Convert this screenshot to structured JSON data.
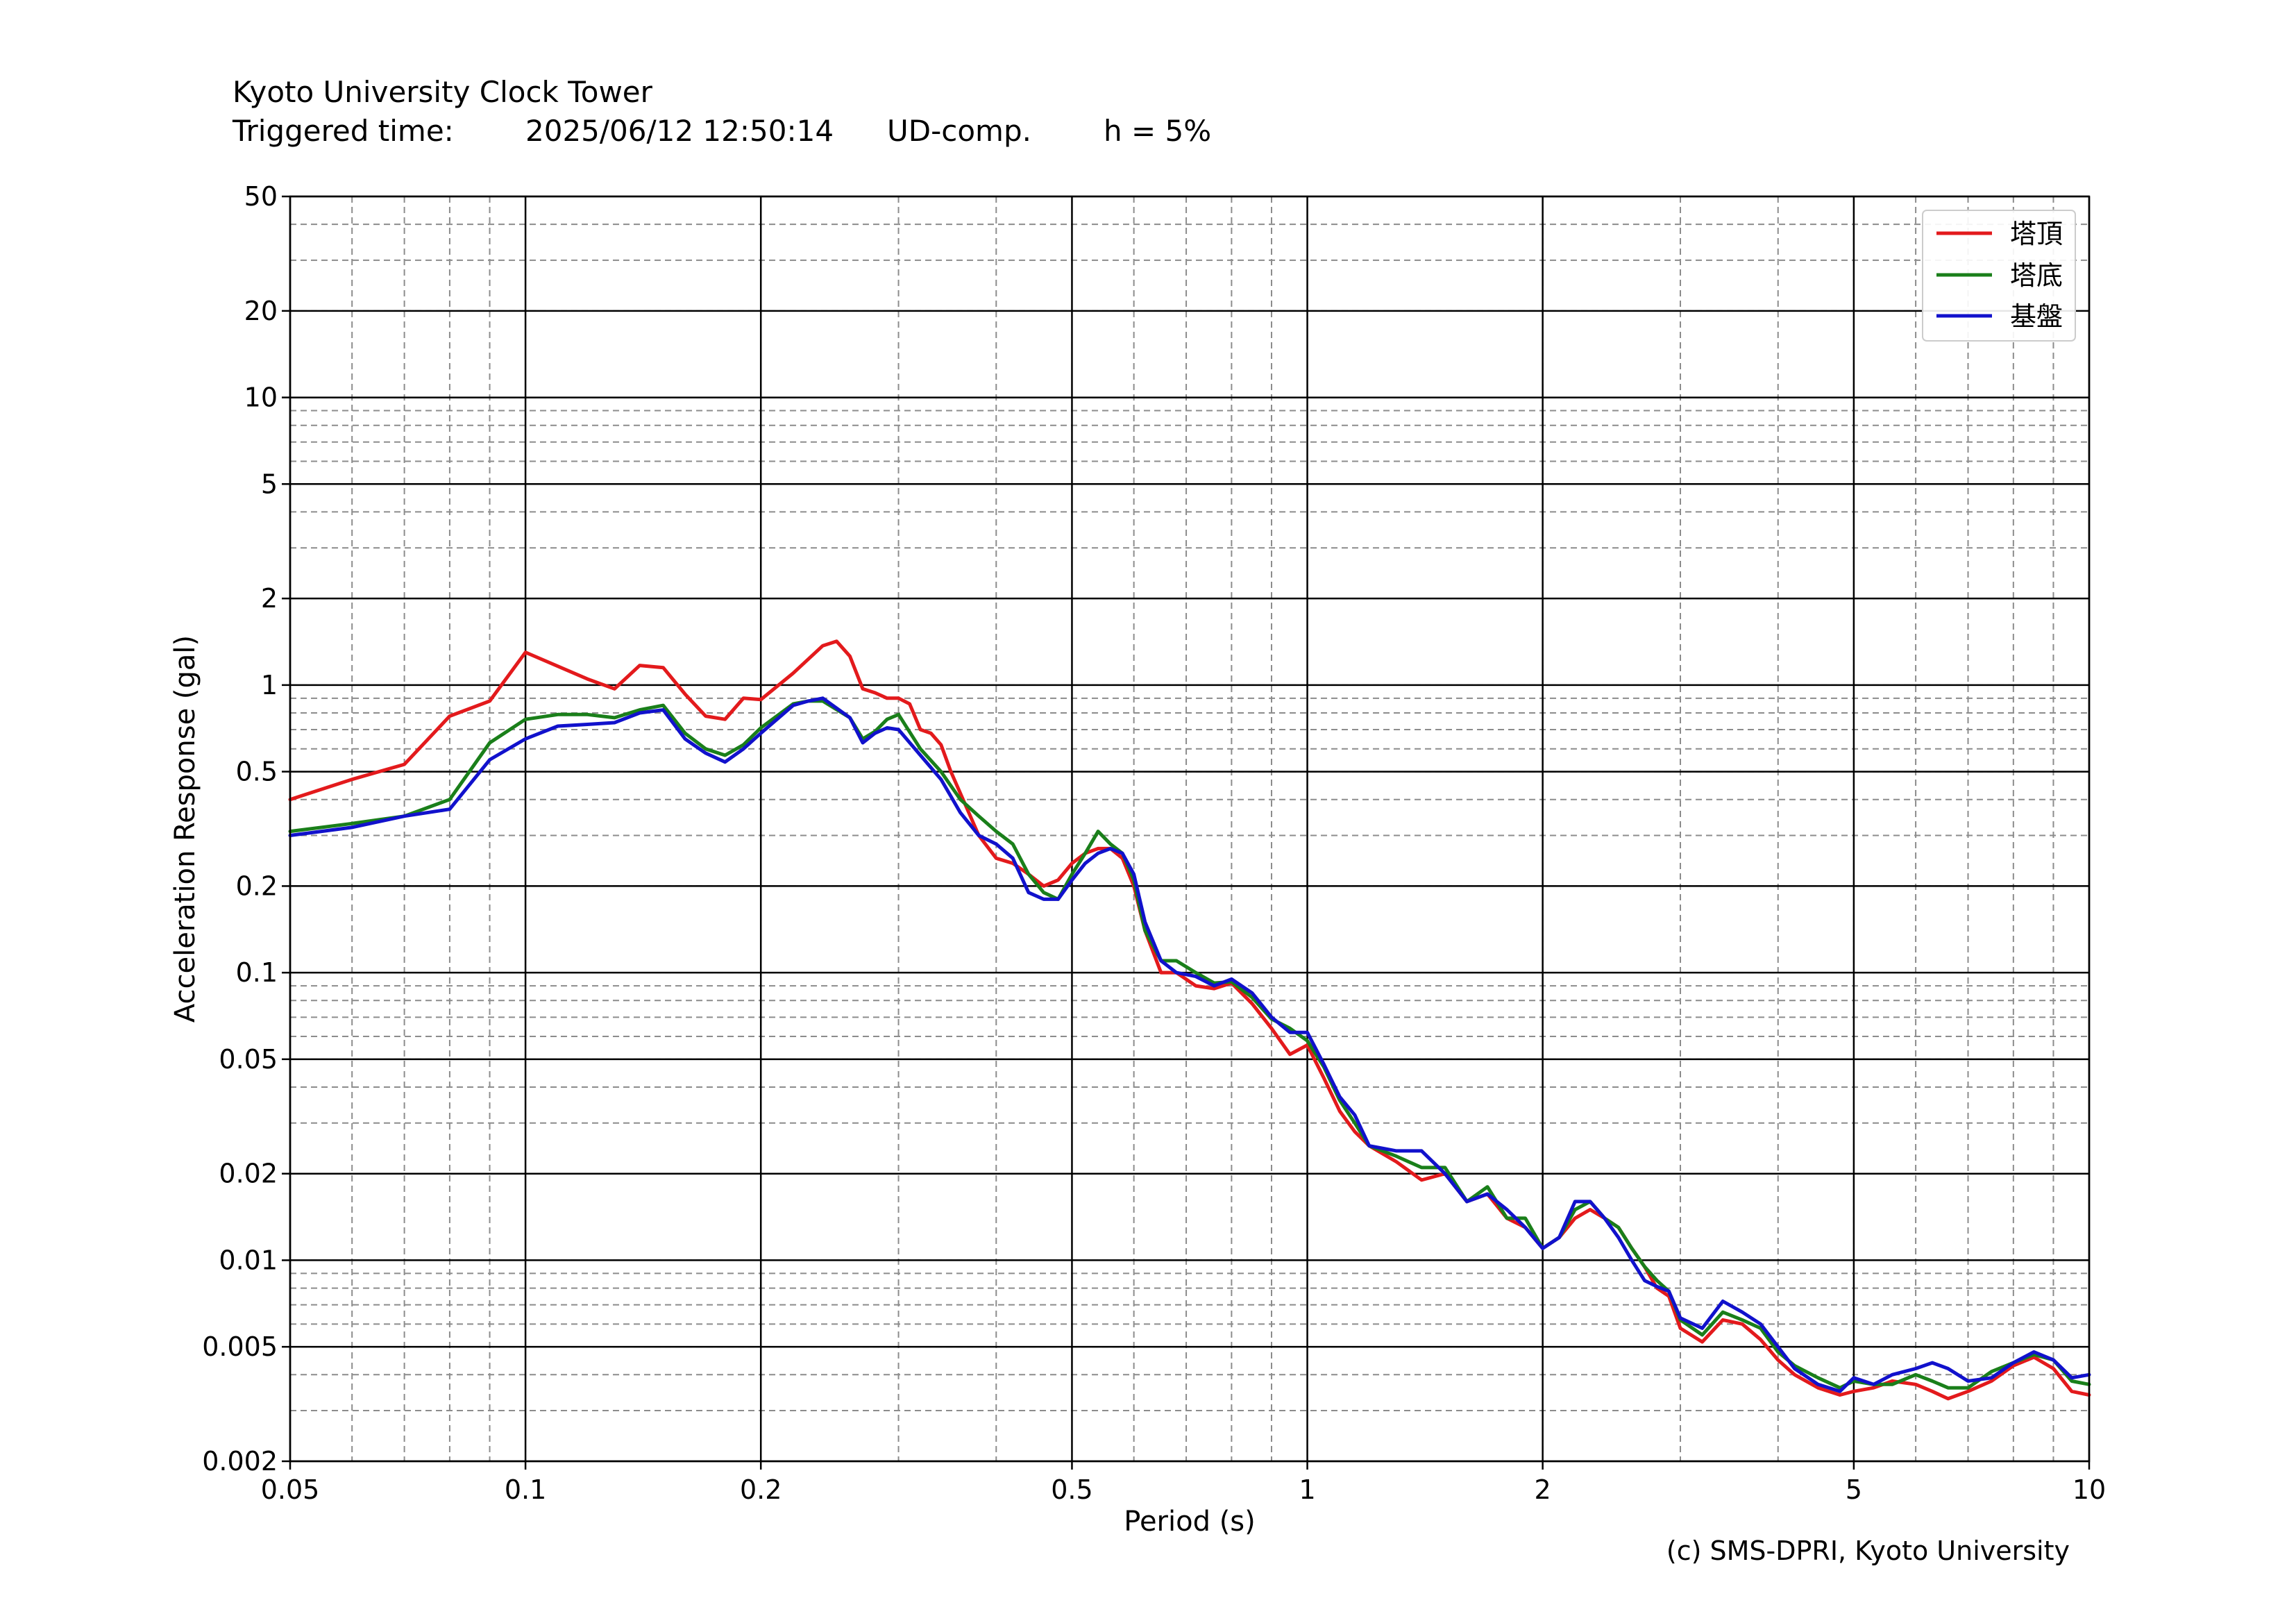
{
  "header": {
    "line1": "Kyoto University Clock Tower",
    "triggered_label": "Triggered time:",
    "triggered_time": "2025/06/12 12:50:14",
    "component": "UD-comp.",
    "damping": "h = 5%"
  },
  "credit": "(c) SMS-DPRI, Kyoto University",
  "chart_data": {
    "type": "line",
    "title": "",
    "xlabel": "Period (s)",
    "ylabel": "Acceleration Response (gal)",
    "xscale": "log",
    "yscale": "log",
    "xlim": [
      0.05,
      10
    ],
    "ylim": [
      0.002,
      50
    ],
    "grid": true,
    "legend_position": "top-right",
    "x_ticks": [
      {
        "v": 0.05,
        "label": "0.05"
      },
      {
        "v": 0.1,
        "label": "0.1"
      },
      {
        "v": 0.2,
        "label": "0.2"
      },
      {
        "v": 0.5,
        "label": "0.5"
      },
      {
        "v": 1,
        "label": "1"
      },
      {
        "v": 2,
        "label": "2"
      },
      {
        "v": 5,
        "label": "5"
      },
      {
        "v": 10,
        "label": "10"
      }
    ],
    "y_ticks": [
      {
        "v": 0.002,
        "label": "0.002"
      },
      {
        "v": 0.005,
        "label": "0.005"
      },
      {
        "v": 0.01,
        "label": "0.01"
      },
      {
        "v": 0.02,
        "label": "0.02"
      },
      {
        "v": 0.05,
        "label": "0.05"
      },
      {
        "v": 0.1,
        "label": "0.1"
      },
      {
        "v": 0.2,
        "label": "0.2"
      },
      {
        "v": 0.5,
        "label": "0.5"
      },
      {
        "v": 1,
        "label": "1"
      },
      {
        "v": 2,
        "label": "2"
      },
      {
        "v": 5,
        "label": "5"
      },
      {
        "v": 10,
        "label": "10"
      },
      {
        "v": 20,
        "label": "20"
      },
      {
        "v": 50,
        "label": "50"
      }
    ],
    "series": [
      {
        "name": "塔頂",
        "color": "#e31a1c",
        "x": [
          0.05,
          0.06,
          0.07,
          0.08,
          0.09,
          0.1,
          0.12,
          0.13,
          0.14,
          0.15,
          0.16,
          0.17,
          0.18,
          0.19,
          0.2,
          0.22,
          0.24,
          0.25,
          0.26,
          0.27,
          0.28,
          0.29,
          0.3,
          0.31,
          0.32,
          0.33,
          0.34,
          0.35,
          0.36,
          0.38,
          0.4,
          0.42,
          0.44,
          0.46,
          0.48,
          0.5,
          0.52,
          0.54,
          0.56,
          0.58,
          0.6,
          0.62,
          0.65,
          0.68,
          0.72,
          0.76,
          0.8,
          0.85,
          0.9,
          0.95,
          1.0,
          1.05,
          1.1,
          1.15,
          1.2,
          1.3,
          1.4,
          1.5,
          1.6,
          1.7,
          1.8,
          1.9,
          2.0,
          2.1,
          2.2,
          2.3,
          2.4,
          2.5,
          2.6,
          2.7,
          2.8,
          2.9,
          3.0,
          3.2,
          3.4,
          3.6,
          3.8,
          4.0,
          4.2,
          4.5,
          4.8,
          5.0,
          5.3,
          5.6,
          6.0,
          6.3,
          6.6,
          7.0,
          7.5,
          8.0,
          8.5,
          9.0,
          9.5,
          10.0
        ],
        "values": [
          0.4,
          0.47,
          0.53,
          0.78,
          0.88,
          1.3,
          1.05,
          0.97,
          1.17,
          1.15,
          0.93,
          0.78,
          0.76,
          0.9,
          0.89,
          1.1,
          1.37,
          1.42,
          1.26,
          0.97,
          0.94,
          0.9,
          0.9,
          0.86,
          0.7,
          0.68,
          0.62,
          0.5,
          0.42,
          0.3,
          0.25,
          0.24,
          0.22,
          0.2,
          0.21,
          0.24,
          0.26,
          0.27,
          0.27,
          0.25,
          0.2,
          0.14,
          0.1,
          0.1,
          0.09,
          0.088,
          0.092,
          0.078,
          0.064,
          0.052,
          0.056,
          0.043,
          0.033,
          0.028,
          0.025,
          0.022,
          0.019,
          0.02,
          0.016,
          0.017,
          0.014,
          0.013,
          0.011,
          0.012,
          0.014,
          0.015,
          0.014,
          0.013,
          0.011,
          0.0095,
          0.008,
          0.0075,
          0.0058,
          0.0052,
          0.0062,
          0.006,
          0.0053,
          0.0045,
          0.004,
          0.0036,
          0.0034,
          0.0035,
          0.0036,
          0.0038,
          0.0037,
          0.0035,
          0.0033,
          0.0035,
          0.0038,
          0.0043,
          0.0046,
          0.0042,
          0.0035,
          0.0034
        ]
      },
      {
        "name": "塔底",
        "color": "#1a7f1a",
        "x": [
          0.05,
          0.06,
          0.07,
          0.08,
          0.09,
          0.1,
          0.11,
          0.12,
          0.13,
          0.14,
          0.15,
          0.16,
          0.17,
          0.18,
          0.19,
          0.2,
          0.22,
          0.23,
          0.24,
          0.26,
          0.27,
          0.28,
          0.29,
          0.3,
          0.32,
          0.34,
          0.36,
          0.38,
          0.4,
          0.42,
          0.44,
          0.46,
          0.48,
          0.5,
          0.52,
          0.54,
          0.56,
          0.58,
          0.6,
          0.62,
          0.65,
          0.68,
          0.72,
          0.76,
          0.8,
          0.85,
          0.9,
          0.95,
          1.0,
          1.05,
          1.1,
          1.15,
          1.2,
          1.3,
          1.4,
          1.5,
          1.6,
          1.7,
          1.8,
          1.9,
          2.0,
          2.1,
          2.2,
          2.3,
          2.4,
          2.5,
          2.6,
          2.7,
          2.8,
          2.9,
          3.0,
          3.2,
          3.4,
          3.6,
          3.8,
          4.0,
          4.2,
          4.5,
          4.8,
          5.0,
          5.3,
          5.6,
          6.0,
          6.3,
          6.6,
          7.0,
          7.5,
          8.0,
          8.5,
          9.0,
          9.5,
          10.0
        ],
        "values": [
          0.31,
          0.33,
          0.35,
          0.4,
          0.63,
          0.76,
          0.79,
          0.79,
          0.77,
          0.82,
          0.85,
          0.68,
          0.6,
          0.57,
          0.62,
          0.71,
          0.86,
          0.88,
          0.88,
          0.77,
          0.65,
          0.69,
          0.76,
          0.79,
          0.6,
          0.5,
          0.4,
          0.35,
          0.31,
          0.28,
          0.22,
          0.19,
          0.18,
          0.22,
          0.26,
          0.31,
          0.28,
          0.26,
          0.21,
          0.14,
          0.11,
          0.11,
          0.1,
          0.092,
          0.093,
          0.082,
          0.069,
          0.064,
          0.058,
          0.047,
          0.036,
          0.03,
          0.025,
          0.023,
          0.021,
          0.021,
          0.016,
          0.018,
          0.014,
          0.014,
          0.011,
          0.012,
          0.015,
          0.016,
          0.014,
          0.013,
          0.011,
          0.0095,
          0.0085,
          0.0078,
          0.0062,
          0.0055,
          0.0066,
          0.0062,
          0.0058,
          0.0048,
          0.0043,
          0.0039,
          0.0036,
          0.0038,
          0.0037,
          0.0037,
          0.004,
          0.0038,
          0.0036,
          0.0036,
          0.0041,
          0.0044,
          0.0047,
          0.0045,
          0.0038,
          0.0037
        ]
      },
      {
        "name": "基盤",
        "color": "#1111cc",
        "x": [
          0.05,
          0.06,
          0.07,
          0.08,
          0.09,
          0.1,
          0.11,
          0.12,
          0.13,
          0.14,
          0.15,
          0.16,
          0.17,
          0.18,
          0.19,
          0.2,
          0.22,
          0.23,
          0.24,
          0.26,
          0.27,
          0.28,
          0.29,
          0.3,
          0.32,
          0.34,
          0.36,
          0.38,
          0.4,
          0.42,
          0.44,
          0.46,
          0.48,
          0.5,
          0.52,
          0.54,
          0.56,
          0.58,
          0.6,
          0.62,
          0.65,
          0.68,
          0.72,
          0.76,
          0.8,
          0.85,
          0.9,
          0.95,
          1.0,
          1.05,
          1.1,
          1.15,
          1.2,
          1.3,
          1.4,
          1.5,
          1.6,
          1.7,
          1.8,
          1.9,
          2.0,
          2.1,
          2.2,
          2.3,
          2.4,
          2.5,
          2.6,
          2.7,
          2.8,
          2.9,
          3.0,
          3.2,
          3.4,
          3.6,
          3.8,
          4.0,
          4.2,
          4.5,
          4.8,
          5.0,
          5.3,
          5.6,
          6.0,
          6.3,
          6.6,
          7.0,
          7.5,
          8.0,
          8.5,
          9.0,
          9.5,
          10.0
        ],
        "values": [
          0.3,
          0.32,
          0.35,
          0.37,
          0.55,
          0.65,
          0.72,
          0.73,
          0.74,
          0.8,
          0.82,
          0.65,
          0.58,
          0.54,
          0.6,
          0.68,
          0.85,
          0.88,
          0.9,
          0.77,
          0.63,
          0.68,
          0.71,
          0.7,
          0.57,
          0.47,
          0.36,
          0.3,
          0.28,
          0.25,
          0.19,
          0.18,
          0.18,
          0.21,
          0.24,
          0.26,
          0.27,
          0.26,
          0.22,
          0.15,
          0.11,
          0.1,
          0.097,
          0.09,
          0.095,
          0.085,
          0.07,
          0.062,
          0.062,
          0.048,
          0.037,
          0.032,
          0.025,
          0.024,
          0.024,
          0.02,
          0.016,
          0.017,
          0.015,
          0.013,
          0.011,
          0.012,
          0.016,
          0.016,
          0.014,
          0.012,
          0.01,
          0.0085,
          0.0081,
          0.0078,
          0.0063,
          0.0058,
          0.0072,
          0.0066,
          0.006,
          0.005,
          0.0042,
          0.0037,
          0.0035,
          0.0039,
          0.0037,
          0.004,
          0.0042,
          0.0044,
          0.0042,
          0.0038,
          0.0039,
          0.0044,
          0.0048,
          0.0045,
          0.0039,
          0.004
        ]
      }
    ]
  }
}
